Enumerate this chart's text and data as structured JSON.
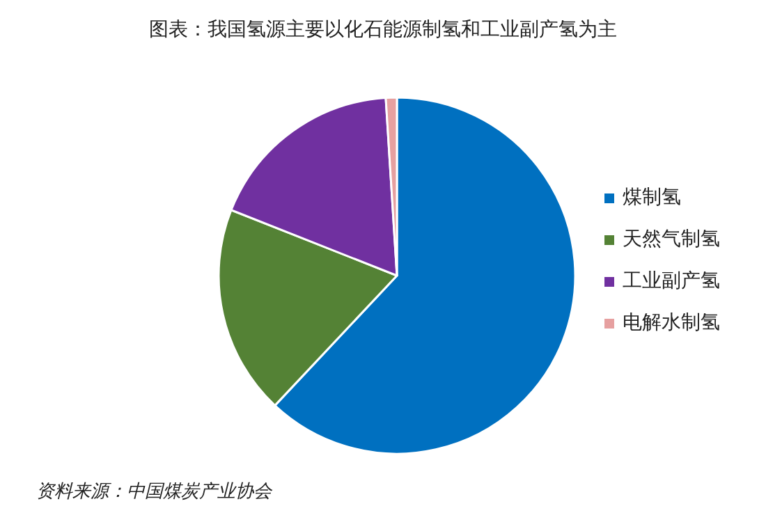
{
  "chart_data": {
    "type": "pie",
    "title": "图表：我国氢源主要以化石能源制氢和工业副产氢为主",
    "categories": [
      "煤制氢",
      "天然气制氢",
      "工业副产氢",
      "电解水制氢"
    ],
    "values": [
      62,
      19,
      18,
      1
    ],
    "colors": [
      "#0070c0",
      "#548235",
      "#7030a0",
      "#e6a0a0"
    ],
    "legend": "right",
    "annotations": [
      "资料来源：中国煤炭产业协会"
    ]
  }
}
